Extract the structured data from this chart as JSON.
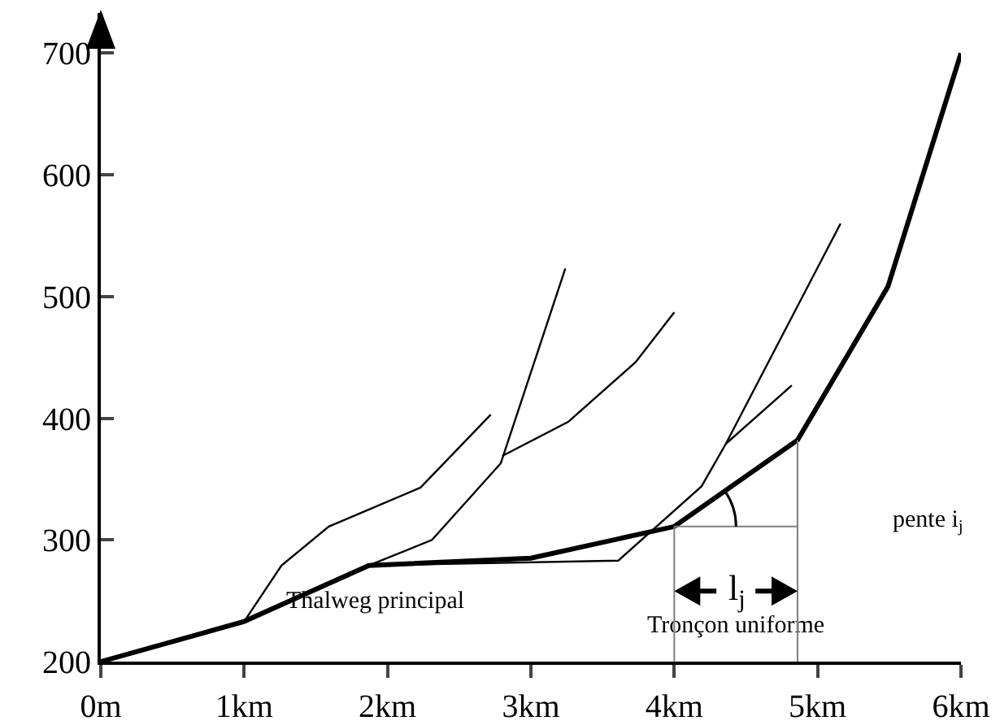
{
  "chart_data": {
    "type": "line",
    "xlim": [
      0,
      6
    ],
    "ylim": [
      200,
      733
    ],
    "xticks": [
      {
        "value": 0,
        "label": "0m"
      },
      {
        "value": 1,
        "label": "1km"
      },
      {
        "value": 2,
        "label": "2km"
      },
      {
        "value": 3,
        "label": "3km"
      },
      {
        "value": 4,
        "label": "4km"
      },
      {
        "value": 5,
        "label": "5km"
      },
      {
        "value": 6,
        "label": "6km"
      }
    ],
    "yticks": [
      200,
      300,
      400,
      500,
      600,
      700
    ],
    "grid": false,
    "legend": false,
    "marker": "none",
    "line_style": "solid",
    "series": [
      {
        "name": "Thalweg principal",
        "color": "#000000",
        "x": [
          0,
          1,
          1.87,
          3,
          4,
          4.86,
          5.49,
          6
        ],
        "values": [
          200,
          233,
          279,
          285,
          311,
          382,
          508,
          700
        ]
      },
      {
        "color": "#000000",
        "x": [
          1,
          1.26,
          1.59,
          2.23,
          2.72
        ],
        "values": [
          233,
          279,
          311,
          343,
          403
        ]
      },
      {
        "color": "#000000",
        "x": [
          1.87,
          2.31,
          2.79,
          3.24
        ],
        "values": [
          279,
          300,
          363,
          523
        ]
      },
      {
        "color": "#000000",
        "x": [
          2.8,
          3.26,
          3.73,
          4.0
        ],
        "values": [
          369,
          397,
          446,
          487
        ]
      },
      {
        "color": "#000000",
        "x": [
          1.87,
          3.61,
          4.19,
          4.36,
          5.16
        ],
        "values": [
          279,
          283,
          344,
          379,
          560
        ]
      },
      {
        "color": "#000000",
        "x": [
          4.36,
          4.82
        ],
        "values": [
          379,
          427
        ]
      }
    ],
    "ref_lines": [
      {
        "axis": "x",
        "value": 4,
        "color": "#808080"
      },
      {
        "axis": "x",
        "value": 4.86,
        "color": "#808080"
      }
    ],
    "annotations": [
      "l$_{j}$",
      "pente i$_{j}$",
      "Tronçon uniforme"
    ]
  }
}
